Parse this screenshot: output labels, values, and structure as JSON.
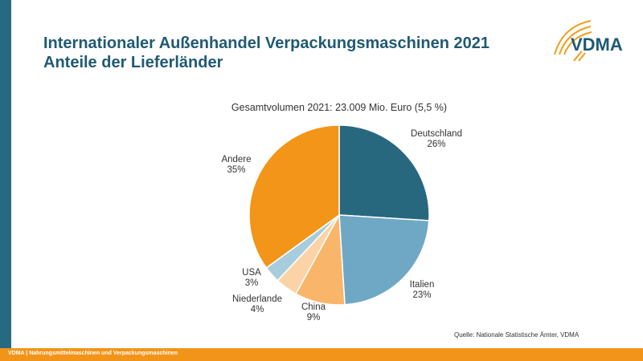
{
  "title": {
    "line1": "Internationaler Außenhandel Verpackungsmaschinen 2021",
    "line2": "Anteile der Lieferländer"
  },
  "logo_text": "VDMA",
  "footer": "VDMA | Nahrungsmittelmaschinen und Verpackungsmaschinen",
  "source": "Quelle: Nationale Statistische Ämter, VDMA",
  "chart_data": {
    "type": "pie",
    "title": "Gesamtvolumen  2021: 23.009 Mio. Euro (5,5 %)",
    "unit": "%",
    "start": "12 o'clock, clockwise",
    "slices": [
      {
        "name": "Deutschland",
        "value": 26,
        "label": "26%",
        "color": "#27687f"
      },
      {
        "name": "Italien",
        "value": 23,
        "label": "23%",
        "color": "#6fa8c4"
      },
      {
        "name": "China",
        "value": 9,
        "label": "9%",
        "color": "#f9b66a"
      },
      {
        "name": "Niederlande",
        "value": 4,
        "label": "4%",
        "color": "#fbd3a6"
      },
      {
        "name": "USA",
        "value": 3,
        "label": "3%",
        "color": "#a7cddc"
      },
      {
        "name": "Andere",
        "value": 35,
        "label": "35%",
        "color": "#f39518"
      }
    ]
  },
  "colors": {
    "sidebar": "#266a82",
    "footer": "#f29419",
    "title": "#1f5a73"
  }
}
